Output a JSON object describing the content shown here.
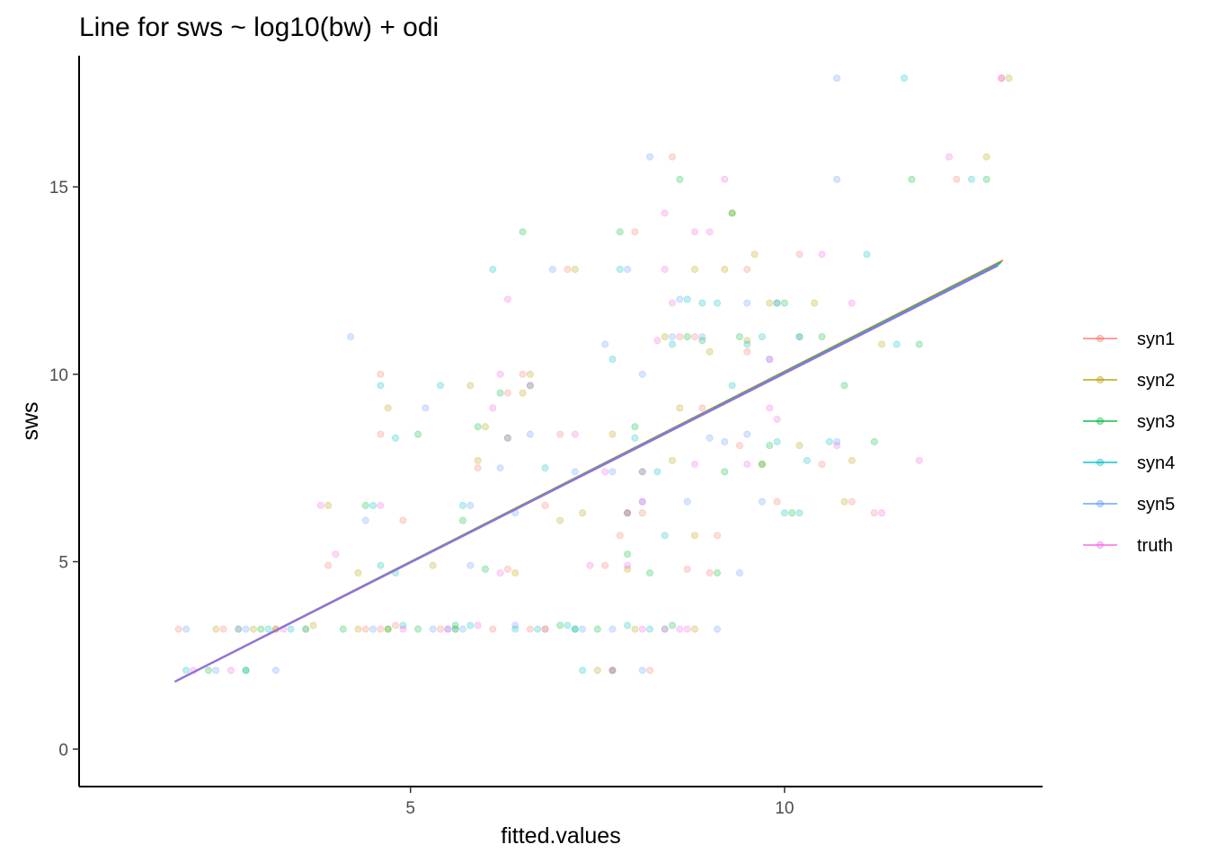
{
  "chart_data": {
    "type": "scatter",
    "title": "Line for sws ~ log10(bw) + odi",
    "xlabel": "fitted.values",
    "ylabel": "sws",
    "xlim": [
      0.57,
      13.45
    ],
    "ylim": [
      -1.0,
      18.5
    ],
    "x_ticks": [
      5,
      10
    ],
    "x_tick_labels": [
      "5",
      "10"
    ],
    "y_ticks": [
      0,
      5,
      10,
      15
    ],
    "y_tick_labels": [
      "0",
      "5",
      "10",
      "15"
    ],
    "grid": false,
    "legend_position": "right",
    "point_opacity": 0.25,
    "colors": {
      "syn1": "#F8766D",
      "syn2": "#B79F00",
      "syn3": "#00BA38",
      "syn4": "#00BFC4",
      "syn5": "#619CFF",
      "truth": "#F564E3",
      "fit_line": "#9370DB"
    },
    "fit_line": {
      "x": [
        1.85,
        12.85
      ],
      "y": [
        1.8,
        12.9
      ]
    },
    "series": [
      {
        "name": "syn1",
        "color": "#F8766D",
        "points": [
          [
            1.9,
            3.2
          ],
          [
            2.5,
            3.2
          ],
          [
            2.7,
            3.2
          ],
          [
            4.6,
            10.0
          ],
          [
            4.6,
            8.4
          ],
          [
            4.9,
            6.1
          ],
          [
            3.9,
            4.9
          ],
          [
            4.4,
            3.2
          ],
          [
            4.6,
            3.2
          ],
          [
            4.8,
            3.3
          ],
          [
            5.9,
            7.5
          ],
          [
            6.3,
            4.8
          ],
          [
            6.3,
            9.5
          ],
          [
            6.5,
            10.0
          ],
          [
            6.6,
            3.2
          ],
          [
            6.8,
            6.5
          ],
          [
            7.1,
            12.8
          ],
          [
            7.0,
            8.4
          ],
          [
            7.6,
            4.9
          ],
          [
            7.8,
            5.7
          ],
          [
            7.9,
            6.3
          ],
          [
            8.0,
            13.8
          ],
          [
            8.1,
            6.3
          ],
          [
            8.2,
            2.1
          ],
          [
            8.4,
            3.2
          ],
          [
            8.6,
            11.0
          ],
          [
            8.5,
            15.8
          ],
          [
            8.7,
            4.8
          ],
          [
            8.8,
            11.0
          ],
          [
            8.9,
            9.1
          ],
          [
            9.0,
            4.7
          ],
          [
            9.1,
            5.7
          ],
          [
            9.4,
            8.1
          ],
          [
            9.5,
            12.8
          ],
          [
            9.5,
            10.6
          ],
          [
            9.9,
            6.6
          ],
          [
            10.2,
            13.2
          ],
          [
            10.5,
            7.6
          ],
          [
            10.9,
            6.6
          ],
          [
            11.2,
            6.3
          ],
          [
            12.3,
            15.2
          ],
          [
            12.9,
            17.9
          ],
          [
            7.7,
            2.1
          ],
          [
            6.1,
            3.2
          ],
          [
            5.4,
            3.2
          ],
          [
            3.2,
            3.2
          ]
        ]
      },
      {
        "name": "syn2",
        "color": "#B79F00",
        "points": [
          [
            2.4,
            3.2
          ],
          [
            2.9,
            3.2
          ],
          [
            3.2,
            3.2
          ],
          [
            3.7,
            3.3
          ],
          [
            3.9,
            6.5
          ],
          [
            4.3,
            4.7
          ],
          [
            4.7,
            9.1
          ],
          [
            4.7,
            3.2
          ],
          [
            5.3,
            4.9
          ],
          [
            5.6,
            3.2
          ],
          [
            5.8,
            9.7
          ],
          [
            6.0,
            8.6
          ],
          [
            6.4,
            4.7
          ],
          [
            6.6,
            10.0
          ],
          [
            6.8,
            3.2
          ],
          [
            7.0,
            6.1
          ],
          [
            7.2,
            12.8
          ],
          [
            7.3,
            6.3
          ],
          [
            7.7,
            8.4
          ],
          [
            7.9,
            4.8
          ],
          [
            8.0,
            3.2
          ],
          [
            8.4,
            11.0
          ],
          [
            8.5,
            7.7
          ],
          [
            8.6,
            9.1
          ],
          [
            8.8,
            5.7
          ],
          [
            8.8,
            12.8
          ],
          [
            9.0,
            10.6
          ],
          [
            9.2,
            12.8
          ],
          [
            9.3,
            14.3
          ],
          [
            9.5,
            10.9
          ],
          [
            9.6,
            13.2
          ],
          [
            9.8,
            11.9
          ],
          [
            10.2,
            8.1
          ],
          [
            10.4,
            11.9
          ],
          [
            10.8,
            6.6
          ],
          [
            10.9,
            7.7
          ],
          [
            11.3,
            10.8
          ],
          [
            12.7,
            15.8
          ],
          [
            13.0,
            17.9
          ],
          [
            8.8,
            3.2
          ],
          [
            5.9,
            7.7
          ],
          [
            6.5,
            9.5
          ],
          [
            9.7,
            7.6
          ],
          [
            7.5,
            2.1
          ],
          [
            4.3,
            3.2
          ],
          [
            3.6,
            3.2
          ]
        ]
      },
      {
        "name": "syn3",
        "color": "#00BA38",
        "points": [
          [
            2.3,
            2.1
          ],
          [
            2.8,
            2.1
          ],
          [
            3.0,
            3.2
          ],
          [
            4.4,
            6.5
          ],
          [
            4.7,
            3.2
          ],
          [
            5.1,
            8.4
          ],
          [
            5.6,
            3.3
          ],
          [
            5.7,
            6.1
          ],
          [
            5.9,
            8.6
          ],
          [
            6.0,
            4.8
          ],
          [
            6.2,
            9.5
          ],
          [
            6.3,
            8.3
          ],
          [
            6.5,
            13.8
          ],
          [
            6.6,
            9.7
          ],
          [
            7.0,
            3.3
          ],
          [
            7.5,
            3.2
          ],
          [
            7.7,
            2.1
          ],
          [
            7.8,
            13.8
          ],
          [
            7.9,
            6.3
          ],
          [
            8.0,
            8.6
          ],
          [
            8.1,
            7.4
          ],
          [
            8.5,
            3.3
          ],
          [
            8.6,
            15.2
          ],
          [
            8.7,
            11.0
          ],
          [
            8.9,
            10.9
          ],
          [
            9.1,
            4.7
          ],
          [
            9.2,
            7.4
          ],
          [
            9.3,
            14.3
          ],
          [
            9.4,
            11.0
          ],
          [
            9.7,
            7.6
          ],
          [
            9.8,
            8.1
          ],
          [
            10.1,
            6.3
          ],
          [
            10.2,
            11.0
          ],
          [
            10.5,
            11.0
          ],
          [
            10.8,
            9.7
          ],
          [
            11.2,
            8.2
          ],
          [
            11.7,
            15.2
          ],
          [
            11.8,
            10.8
          ],
          [
            12.7,
            15.2
          ],
          [
            10.0,
            11.9
          ],
          [
            8.2,
            4.7
          ],
          [
            7.9,
            5.2
          ],
          [
            9.9,
            11.9
          ],
          [
            7.2,
            3.2
          ],
          [
            5.1,
            3.2
          ],
          [
            4.1,
            3.2
          ]
        ]
      },
      {
        "name": "syn4",
        "color": "#00BFC4",
        "points": [
          [
            2.0,
            2.1
          ],
          [
            2.7,
            3.2
          ],
          [
            3.1,
            3.2
          ],
          [
            3.6,
            3.2
          ],
          [
            4.5,
            6.5
          ],
          [
            4.6,
            9.7
          ],
          [
            4.6,
            4.9
          ],
          [
            4.8,
            8.3
          ],
          [
            4.9,
            3.3
          ],
          [
            5.4,
            9.7
          ],
          [
            5.7,
            6.5
          ],
          [
            5.8,
            3.3
          ],
          [
            6.1,
            12.8
          ],
          [
            6.4,
            3.2
          ],
          [
            6.8,
            7.5
          ],
          [
            7.1,
            3.3
          ],
          [
            7.3,
            2.1
          ],
          [
            7.7,
            10.4
          ],
          [
            7.8,
            12.8
          ],
          [
            7.9,
            3.3
          ],
          [
            8.0,
            8.3
          ],
          [
            8.2,
            3.2
          ],
          [
            8.4,
            5.7
          ],
          [
            8.5,
            10.8
          ],
          [
            8.7,
            12.0
          ],
          [
            8.9,
            11.9
          ],
          [
            9.3,
            9.7
          ],
          [
            9.5,
            10.8
          ],
          [
            9.7,
            11.0
          ],
          [
            9.9,
            8.2
          ],
          [
            10.0,
            6.3
          ],
          [
            10.3,
            7.7
          ],
          [
            10.6,
            8.2
          ],
          [
            11.1,
            13.2
          ],
          [
            11.5,
            10.8
          ],
          [
            12.5,
            15.2
          ],
          [
            11.6,
            17.9
          ],
          [
            4.8,
            4.7
          ],
          [
            5.6,
            3.2
          ],
          [
            7.2,
            3.2
          ],
          [
            6.7,
            3.2
          ],
          [
            3.4,
            3.2
          ],
          [
            2.8,
            2.1
          ],
          [
            9.1,
            11.9
          ],
          [
            10.2,
            6.3
          ],
          [
            8.3,
            7.4
          ]
        ]
      },
      {
        "name": "syn5",
        "color": "#619CFF",
        "points": [
          [
            2.0,
            3.2
          ],
          [
            2.4,
            2.1
          ],
          [
            2.8,
            3.2
          ],
          [
            3.2,
            2.1
          ],
          [
            4.4,
            6.1
          ],
          [
            4.2,
            11.0
          ],
          [
            5.2,
            9.1
          ],
          [
            5.3,
            3.2
          ],
          [
            5.7,
            3.2
          ],
          [
            5.8,
            4.9
          ],
          [
            5.8,
            6.5
          ],
          [
            6.2,
            7.5
          ],
          [
            6.4,
            3.3
          ],
          [
            6.6,
            8.4
          ],
          [
            6.9,
            12.8
          ],
          [
            7.2,
            7.4
          ],
          [
            7.3,
            3.2
          ],
          [
            7.6,
            10.8
          ],
          [
            7.7,
            3.2
          ],
          [
            7.9,
            12.8
          ],
          [
            8.1,
            10.0
          ],
          [
            8.1,
            6.6
          ],
          [
            8.2,
            15.8
          ],
          [
            8.4,
            3.2
          ],
          [
            8.5,
            11.0
          ],
          [
            8.6,
            12.0
          ],
          [
            8.7,
            6.6
          ],
          [
            8.9,
            11.0
          ],
          [
            9.0,
            8.3
          ],
          [
            9.2,
            8.2
          ],
          [
            9.5,
            8.4
          ],
          [
            9.7,
            6.6
          ],
          [
            9.8,
            10.4
          ],
          [
            9.9,
            11.9
          ],
          [
            10.2,
            11.0
          ],
          [
            10.7,
            8.2
          ],
          [
            10.7,
            15.2
          ],
          [
            10.7,
            17.9
          ],
          [
            9.5,
            11.9
          ],
          [
            9.4,
            4.7
          ],
          [
            9.1,
            3.2
          ],
          [
            8.1,
            2.1
          ],
          [
            7.7,
            7.4
          ],
          [
            6.4,
            6.3
          ],
          [
            5.5,
            3.2
          ],
          [
            4.5,
            3.2
          ]
        ]
      },
      {
        "name": "truth",
        "color": "#F564E3",
        "points": [
          [
            2.1,
            2.1
          ],
          [
            2.6,
            2.1
          ],
          [
            3.3,
            3.2
          ],
          [
            3.8,
            6.5
          ],
          [
            4.0,
            5.2
          ],
          [
            4.9,
            3.2
          ],
          [
            5.5,
            3.2
          ],
          [
            5.9,
            3.3
          ],
          [
            6.1,
            9.1
          ],
          [
            6.2,
            10.0
          ],
          [
            6.3,
            8.3
          ],
          [
            6.2,
            4.7
          ],
          [
            6.3,
            12.0
          ],
          [
            6.6,
            9.7
          ],
          [
            6.8,
            3.2
          ],
          [
            7.2,
            8.4
          ],
          [
            7.4,
            4.9
          ],
          [
            7.6,
            7.4
          ],
          [
            7.7,
            2.1
          ],
          [
            7.9,
            4.9
          ],
          [
            8.1,
            6.6
          ],
          [
            8.1,
            7.4
          ],
          [
            8.3,
            10.9
          ],
          [
            8.4,
            14.3
          ],
          [
            8.4,
            12.8
          ],
          [
            8.5,
            11.9
          ],
          [
            8.7,
            3.2
          ],
          [
            8.8,
            7.6
          ],
          [
            9.0,
            13.8
          ],
          [
            9.2,
            15.2
          ],
          [
            9.5,
            7.6
          ],
          [
            9.8,
            10.4
          ],
          [
            9.8,
            9.1
          ],
          [
            9.9,
            8.8
          ],
          [
            10.5,
            13.2
          ],
          [
            10.7,
            8.1
          ],
          [
            10.9,
            11.9
          ],
          [
            11.3,
            6.3
          ],
          [
            11.8,
            7.7
          ],
          [
            12.2,
            15.8
          ],
          [
            12.9,
            17.9
          ],
          [
            8.6,
            3.2
          ],
          [
            8.1,
            3.2
          ],
          [
            4.6,
            6.5
          ],
          [
            8.8,
            13.8
          ],
          [
            7.9,
            6.3
          ]
        ]
      }
    ]
  }
}
